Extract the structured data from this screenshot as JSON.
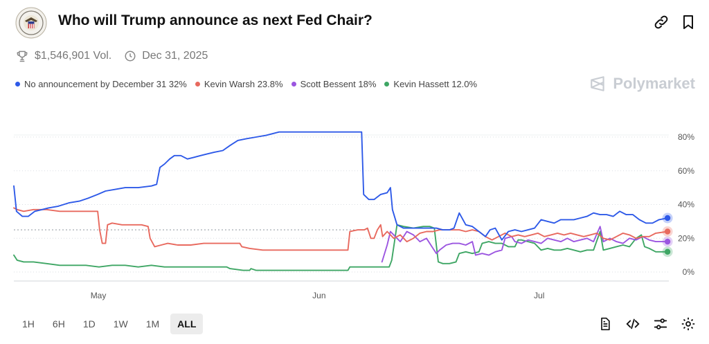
{
  "header": {
    "title": "Who will Trump announce as next Fed Chair?",
    "volume": "$1,546,901 Vol.",
    "end_date": "Dec 31, 2025"
  },
  "brand": {
    "name": "Polymarket"
  },
  "legend": [
    {
      "label": "No announcement by December 31 32%",
      "color": "#2d59e8"
    },
    {
      "label": "Kevin Warsh 23.8%",
      "color": "#e8695e"
    },
    {
      "label": "Scott Bessent 18%",
      "color": "#9b55e0"
    },
    {
      "label": "Kevin Hassett 12.0%",
      "color": "#3ea664"
    }
  ],
  "range_buttons": [
    "1H",
    "6H",
    "1D",
    "1W",
    "1M",
    "ALL"
  ],
  "active_range": "ALL",
  "chart_data": {
    "type": "line",
    "x_tick_labels": [
      "May",
      "Jun",
      "Jul"
    ],
    "y_tick_labels": [
      "80%",
      "60%",
      "40%",
      "20%",
      "0%"
    ],
    "y_ticks": [
      80,
      60,
      40,
      20,
      0
    ],
    "ylim": [
      -5,
      86
    ],
    "x_range": [
      0,
      100
    ],
    "x_ticks": [
      12.9,
      46.6,
      80.2
    ],
    "reference_line": 25,
    "series": [
      {
        "name": "No announcement by December 31",
        "color": "#2d59e8",
        "points": [
          [
            0,
            51
          ],
          [
            0.4,
            36
          ],
          [
            1.3,
            33
          ],
          [
            2.2,
            33
          ],
          [
            3.2,
            36
          ],
          [
            4.3,
            37
          ],
          [
            5.3,
            38
          ],
          [
            6.8,
            39
          ],
          [
            8.4,
            41
          ],
          [
            10,
            42
          ],
          [
            11.5,
            44
          ],
          [
            12.8,
            46
          ],
          [
            14,
            48
          ],
          [
            15.5,
            49
          ],
          [
            17,
            50
          ],
          [
            19,
            50
          ],
          [
            21,
            51
          ],
          [
            21.8,
            52
          ],
          [
            22.3,
            62
          ],
          [
            23,
            64
          ],
          [
            23.8,
            67
          ],
          [
            24.5,
            69
          ],
          [
            25.5,
            69
          ],
          [
            26.5,
            67
          ],
          [
            27.5,
            68
          ],
          [
            28.5,
            69
          ],
          [
            29.5,
            70
          ],
          [
            30.6,
            71
          ],
          [
            31.9,
            72
          ],
          [
            33,
            75
          ],
          [
            34.2,
            78
          ],
          [
            35.5,
            79
          ],
          [
            37,
            80
          ],
          [
            38.5,
            81
          ],
          [
            40.5,
            83
          ],
          [
            42.5,
            83
          ],
          [
            45,
            83
          ],
          [
            48,
            83
          ],
          [
            51,
            83
          ],
          [
            53.1,
            83
          ],
          [
            53.4,
            46
          ],
          [
            54.2,
            43
          ],
          [
            55,
            43
          ],
          [
            56,
            46
          ],
          [
            57,
            47
          ],
          [
            57.5,
            50
          ],
          [
            57.8,
            37
          ],
          [
            58.5,
            28
          ],
          [
            59.5,
            26
          ],
          [
            60.5,
            26
          ],
          [
            61.5,
            26
          ],
          [
            62.5,
            26
          ],
          [
            63.5,
            26
          ],
          [
            64.5,
            26
          ],
          [
            65.5,
            25
          ],
          [
            66.5,
            25
          ],
          [
            67.2,
            26
          ],
          [
            68,
            35
          ],
          [
            69,
            28
          ],
          [
            70,
            27
          ],
          [
            71,
            24
          ],
          [
            72,
            21
          ],
          [
            72.7,
            25
          ],
          [
            73.5,
            26
          ],
          [
            74.5,
            19
          ],
          [
            75.5,
            24
          ],
          [
            76.5,
            25
          ],
          [
            77.5,
            24
          ],
          [
            78.5,
            25
          ],
          [
            79.5,
            26
          ],
          [
            80.5,
            31
          ],
          [
            81.5,
            30
          ],
          [
            82.5,
            29
          ],
          [
            83.5,
            31
          ],
          [
            84.5,
            31
          ],
          [
            85.5,
            31
          ],
          [
            86.5,
            32
          ],
          [
            87.5,
            33
          ],
          [
            88.5,
            35
          ],
          [
            89.5,
            34
          ],
          [
            90.5,
            34
          ],
          [
            91.5,
            33
          ],
          [
            92.5,
            36
          ],
          [
            93.5,
            34
          ],
          [
            94.5,
            34
          ],
          [
            95.5,
            31
          ],
          [
            96.5,
            29
          ],
          [
            97.5,
            29
          ],
          [
            98.5,
            31
          ],
          [
            99.8,
            32
          ]
        ]
      },
      {
        "name": "Kevin Warsh",
        "color": "#e8695e",
        "points": [
          [
            0,
            38
          ],
          [
            0.5,
            37
          ],
          [
            1.5,
            36
          ],
          [
            3,
            37
          ],
          [
            5,
            37
          ],
          [
            7,
            36
          ],
          [
            9,
            36
          ],
          [
            11,
            36
          ],
          [
            12.8,
            36
          ],
          [
            13.1,
            25
          ],
          [
            13.5,
            17
          ],
          [
            14,
            17
          ],
          [
            14.3,
            28
          ],
          [
            15,
            29
          ],
          [
            16.5,
            28
          ],
          [
            18,
            28
          ],
          [
            19.5,
            28
          ],
          [
            20.5,
            27
          ],
          [
            20.8,
            20
          ],
          [
            21.5,
            15
          ],
          [
            22.5,
            16
          ],
          [
            23.5,
            17
          ],
          [
            25,
            16
          ],
          [
            27,
            16
          ],
          [
            29,
            17
          ],
          [
            31,
            17
          ],
          [
            33,
            17
          ],
          [
            34.5,
            17
          ],
          [
            34.8,
            15
          ],
          [
            36,
            14
          ],
          [
            38,
            13
          ],
          [
            40,
            13
          ],
          [
            42,
            13
          ],
          [
            44,
            13
          ],
          [
            46,
            13
          ],
          [
            48,
            13
          ],
          [
            50,
            13
          ],
          [
            51,
            13
          ],
          [
            51.3,
            24
          ],
          [
            52.5,
            25
          ],
          [
            53.5,
            25
          ],
          [
            54,
            26
          ],
          [
            54.5,
            20
          ],
          [
            55,
            20
          ],
          [
            55.5,
            25
          ],
          [
            56,
            28
          ],
          [
            56.3,
            21
          ],
          [
            57,
            24
          ],
          [
            58,
            20
          ],
          [
            59,
            22
          ],
          [
            60,
            18
          ],
          [
            61,
            20
          ],
          [
            62,
            23
          ],
          [
            63,
            24
          ],
          [
            64,
            24
          ],
          [
            65,
            25
          ],
          [
            66,
            25
          ],
          [
            67,
            25
          ],
          [
            68,
            25
          ],
          [
            69,
            24
          ],
          [
            70,
            25
          ],
          [
            71,
            24
          ],
          [
            72,
            21
          ],
          [
            73,
            19
          ],
          [
            74,
            21
          ],
          [
            75,
            23
          ],
          [
            76,
            21
          ],
          [
            77,
            22
          ],
          [
            78,
            21
          ],
          [
            79,
            22
          ],
          [
            80,
            23
          ],
          [
            81,
            21
          ],
          [
            82,
            22
          ],
          [
            83,
            23
          ],
          [
            84,
            22
          ],
          [
            85,
            23
          ],
          [
            86,
            22
          ],
          [
            87,
            21
          ],
          [
            88,
            22
          ],
          [
            89,
            23
          ],
          [
            90,
            20
          ],
          [
            91,
            19
          ],
          [
            92,
            21
          ],
          [
            93,
            23
          ],
          [
            94,
            22
          ],
          [
            95,
            20
          ],
          [
            96,
            21
          ],
          [
            97,
            21
          ],
          [
            98,
            23
          ],
          [
            99.8,
            24
          ]
        ]
      },
      {
        "name": "Scott Bessent",
        "color": "#9b55e0",
        "points": [
          [
            56.2,
            6
          ],
          [
            57,
            16
          ],
          [
            57.5,
            24
          ],
          [
            58,
            22
          ],
          [
            59,
            18
          ],
          [
            60,
            24
          ],
          [
            61,
            22
          ],
          [
            62,
            18
          ],
          [
            63,
            20
          ],
          [
            64,
            14
          ],
          [
            64.5,
            11
          ],
          [
            65,
            13
          ],
          [
            66,
            16
          ],
          [
            67,
            17
          ],
          [
            68,
            17
          ],
          [
            69,
            16
          ],
          [
            70,
            18
          ],
          [
            70.5,
            10
          ],
          [
            71.5,
            11
          ],
          [
            72.5,
            10
          ],
          [
            73.5,
            12
          ],
          [
            74.5,
            13
          ],
          [
            75,
            20
          ],
          [
            76,
            21
          ],
          [
            76.5,
            18
          ],
          [
            77.5,
            17
          ],
          [
            78.5,
            19
          ],
          [
            79.5,
            18
          ],
          [
            80.5,
            17
          ],
          [
            81.5,
            20
          ],
          [
            82.5,
            19
          ],
          [
            83.5,
            18
          ],
          [
            84.5,
            20
          ],
          [
            85.5,
            18
          ],
          [
            86.5,
            19
          ],
          [
            87.5,
            20
          ],
          [
            88.5,
            18
          ],
          [
            89.5,
            27
          ],
          [
            90,
            18
          ],
          [
            91,
            20
          ],
          [
            92,
            18
          ],
          [
            93,
            17
          ],
          [
            94,
            20
          ],
          [
            95,
            19
          ],
          [
            96,
            21
          ],
          [
            97,
            19
          ],
          [
            98,
            18
          ],
          [
            99.8,
            18
          ]
        ]
      },
      {
        "name": "Kevin Hassett",
        "color": "#3ea664",
        "points": [
          [
            0,
            10
          ],
          [
            0.5,
            7
          ],
          [
            1.5,
            6
          ],
          [
            3,
            6
          ],
          [
            5,
            5
          ],
          [
            7,
            4
          ],
          [
            9,
            4
          ],
          [
            11,
            4
          ],
          [
            13,
            3
          ],
          [
            15,
            4
          ],
          [
            17,
            4
          ],
          [
            19,
            3
          ],
          [
            21,
            4
          ],
          [
            23,
            3
          ],
          [
            25,
            3
          ],
          [
            27,
            3
          ],
          [
            29,
            3
          ],
          [
            31,
            3
          ],
          [
            32.5,
            3
          ],
          [
            33,
            2
          ],
          [
            35,
            1
          ],
          [
            36,
            1
          ],
          [
            36.2,
            2
          ],
          [
            37,
            1
          ],
          [
            39,
            1
          ],
          [
            41,
            1
          ],
          [
            43,
            1
          ],
          [
            45,
            1
          ],
          [
            47,
            1
          ],
          [
            49,
            1
          ],
          [
            51,
            1
          ],
          [
            51.3,
            3
          ],
          [
            53,
            3
          ],
          [
            55,
            3
          ],
          [
            56.5,
            3
          ],
          [
            57.3,
            3
          ],
          [
            57.7,
            7
          ],
          [
            58.5,
            28
          ],
          [
            59.5,
            27
          ],
          [
            61,
            26
          ],
          [
            62.5,
            27
          ],
          [
            63.5,
            27
          ],
          [
            64.2,
            26
          ],
          [
            64.8,
            6
          ],
          [
            65.5,
            5
          ],
          [
            66.5,
            5
          ],
          [
            67.5,
            6
          ],
          [
            68,
            11
          ],
          [
            69,
            12
          ],
          [
            70,
            11
          ],
          [
            71,
            12
          ],
          [
            71.5,
            17
          ],
          [
            72.5,
            18
          ],
          [
            73.5,
            17
          ],
          [
            74.5,
            17
          ],
          [
            75.5,
            15
          ],
          [
            76.5,
            15
          ],
          [
            77,
            19
          ],
          [
            77.5,
            19
          ],
          [
            78.5,
            18
          ],
          [
            79.5,
            17
          ],
          [
            80.5,
            13
          ],
          [
            81.5,
            14
          ],
          [
            82.5,
            13
          ],
          [
            83.5,
            13
          ],
          [
            84.5,
            14
          ],
          [
            85.5,
            13
          ],
          [
            86.5,
            12
          ],
          [
            87.5,
            13
          ],
          [
            88.5,
            13
          ],
          [
            89.5,
            24
          ],
          [
            90,
            13
          ],
          [
            91,
            14
          ],
          [
            92,
            15
          ],
          [
            93,
            16
          ],
          [
            94,
            15
          ],
          [
            95,
            20
          ],
          [
            95.8,
            22
          ],
          [
            96.3,
            15
          ],
          [
            97,
            14
          ],
          [
            98,
            12
          ],
          [
            99.8,
            12
          ]
        ]
      }
    ]
  }
}
